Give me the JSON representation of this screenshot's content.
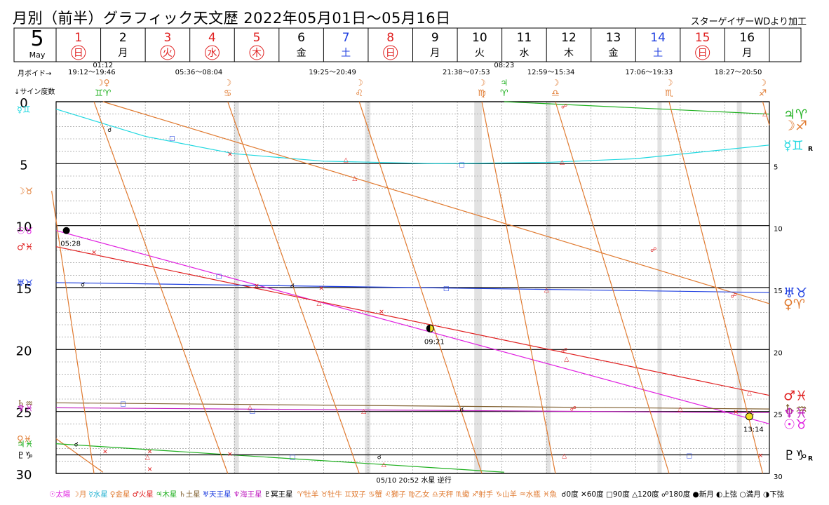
{
  "title": "月別（前半）グラフィック天文歴  2022年05月01日～05月16日",
  "credit": "スターゲイザーWDより加工",
  "month": {
    "number": "5",
    "en": "May"
  },
  "days": [
    {
      "num": "1",
      "wd": "日",
      "kind": "holiday"
    },
    {
      "num": "2",
      "wd": "月",
      "kind": "normal"
    },
    {
      "num": "3",
      "wd": "火",
      "kind": "holiday"
    },
    {
      "num": "4",
      "wd": "水",
      "kind": "holiday"
    },
    {
      "num": "5",
      "wd": "木",
      "kind": "holiday"
    },
    {
      "num": "6",
      "wd": "金",
      "kind": "normal"
    },
    {
      "num": "7",
      "wd": "土",
      "kind": "sat"
    },
    {
      "num": "8",
      "wd": "日",
      "kind": "holiday"
    },
    {
      "num": "9",
      "wd": "月",
      "kind": "normal"
    },
    {
      "num": "10",
      "wd": "火",
      "kind": "normal"
    },
    {
      "num": "11",
      "wd": "水",
      "kind": "normal"
    },
    {
      "num": "12",
      "wd": "木",
      "kind": "normal"
    },
    {
      "num": "13",
      "wd": "金",
      "kind": "normal"
    },
    {
      "num": "14",
      "wd": "土",
      "kind": "sat"
    },
    {
      "num": "15",
      "wd": "日",
      "kind": "holiday"
    },
    {
      "num": "16",
      "wd": "月",
      "kind": "normal"
    }
  ],
  "labels": {
    "void": "月ボイド→",
    "degree": "↓サイン度数",
    "retro_note": "05/10 20:52 水星 逆行",
    "retro_mark": "R"
  },
  "void_periods": [
    {
      "day": 1.8,
      "text": "19:12～19:46"
    },
    {
      "day": 4.2,
      "text": "05:36～08:04"
    },
    {
      "day": 7.2,
      "text": "19:25～20:49"
    },
    {
      "day": 10.2,
      "text": "21:38～07:53"
    },
    {
      "day": 12.1,
      "text": "12:59～15:34"
    },
    {
      "day": 14.3,
      "text": "17:06～19:33"
    },
    {
      "day": 16.3,
      "text": "18:27～20:50"
    }
  ],
  "ingress": [
    {
      "day": 2.05,
      "glyph": "☽♀",
      "sign": "♊♈",
      "time": "01:12",
      "cls": [
        "moon",
        "ven"
      ]
    },
    {
      "day": 4.85,
      "glyph": "☽",
      "sign": "♋",
      "time": "",
      "cls": [
        "moon"
      ]
    },
    {
      "day": 7.8,
      "glyph": "☽",
      "sign": "♌",
      "time": "",
      "cls": [
        "moon"
      ]
    },
    {
      "day": 10.55,
      "glyph": "☽",
      "sign": "♍",
      "time": "",
      "cls": [
        "moon"
      ]
    },
    {
      "day": 11.05,
      "glyph": "♃",
      "sign": "♈",
      "time": "08:23",
      "cls": [
        "jup"
      ]
    },
    {
      "day": 12.2,
      "glyph": "☽",
      "sign": "♎",
      "time": "",
      "cls": [
        "moon"
      ]
    },
    {
      "day": 14.75,
      "glyph": "☽",
      "sign": "♏",
      "time": "",
      "cls": [
        "moon"
      ]
    },
    {
      "day": 16.85,
      "glyph": "☽",
      "sign": "♐",
      "time": "",
      "cls": [
        "moon"
      ]
    }
  ],
  "chart_data": {
    "type": "line",
    "x_label": "日",
    "y_label": "↓サイン度数",
    "x_range": [
      1,
      17
    ],
    "y_range": [
      0,
      30
    ],
    "y_ticks_left": [
      0,
      5,
      10,
      15,
      20,
      25,
      30
    ],
    "y_ticks_right": [
      5,
      10,
      15,
      20,
      25,
      30
    ],
    "void_bands": [
      [
        4.99,
        5.1
      ],
      [
        7.93,
        8.05
      ],
      [
        10.38,
        10.55
      ],
      [
        11.99,
        12.09
      ],
      [
        14.49,
        14.58
      ],
      [
        16.27,
        16.38
      ]
    ],
    "series": [
      {
        "key": "sun",
        "color": "#e020e0",
        "points": [
          [
            1,
            10.4
          ],
          [
            17,
            26.0
          ]
        ],
        "start_label": "☉♉",
        "end_label": "☉♉"
      },
      {
        "key": "mercury",
        "color": "#20d8e0",
        "curve": [
          [
            1,
            0.6
          ],
          [
            3,
            2.8
          ],
          [
            5,
            4.2
          ],
          [
            7,
            4.8
          ],
          [
            9.5,
            5.0
          ],
          [
            12,
            4.9
          ],
          [
            14,
            4.6
          ],
          [
            17,
            3.5
          ]
        ],
        "start_label": "☿♊",
        "end_label": "☿♊",
        "end_mark": "R"
      },
      {
        "key": "venus",
        "color": "#e07a30",
        "points": [
          [
            2.05,
            0.0
          ],
          [
            17,
            16.3
          ]
        ],
        "end_label": "♀♈"
      },
      {
        "key": "venus_prev",
        "color": "#e07a30",
        "points": [
          [
            1,
            27.2
          ],
          [
            2.05,
            29.9
          ]
        ],
        "start_label": "♀♓"
      },
      {
        "key": "mars",
        "color": "#e02020",
        "points": [
          [
            1,
            11.7
          ],
          [
            17,
            23.7
          ]
        ],
        "start_label": "♂♓",
        "end_label": "♂♓"
      },
      {
        "key": "jupiter",
        "color": "#20b020",
        "points": [
          [
            11.05,
            0.0
          ],
          [
            17,
            1.0
          ]
        ],
        "end_label": "♃♈"
      },
      {
        "key": "jupiter_prev",
        "color": "#20b020",
        "points": [
          [
            1,
            27.6
          ],
          [
            11.05,
            29.9
          ]
        ],
        "start_label": "♃♓"
      },
      {
        "key": "saturn",
        "color": "#806030",
        "points": [
          [
            1,
            24.3
          ],
          [
            17,
            24.8
          ]
        ],
        "start_label": "♄♒",
        "end_label": "♄♒"
      },
      {
        "key": "uranus",
        "color": "#2040e0",
        "points": [
          [
            1,
            14.6
          ],
          [
            17,
            15.4
          ]
        ],
        "start_label": "♅♉",
        "end_label": "♅♉"
      },
      {
        "key": "neptune",
        "color": "#c020c0",
        "points": [
          [
            1,
            24.7
          ],
          [
            17,
            25.1
          ]
        ],
        "start_label": "♆♓",
        "end_label": "♆♓"
      },
      {
        "key": "pluto",
        "color": "#000000",
        "points": [
          [
            1,
            28.5
          ],
          [
            17,
            28.5
          ]
        ],
        "start_label": "♇♑",
        "end_label": "♇♑",
        "end_mark": "R"
      },
      {
        "key": "moon_prev",
        "color": "#e07a30",
        "points": [
          [
            0.9,
            7.2
          ],
          [
            1.85,
            30.0
          ]
        ],
        "start_label": "☽♉"
      },
      {
        "key": "moon",
        "color": "#e07a30",
        "segments": [
          [
            [
              1.85,
              0
            ],
            [
              4.85,
              30
            ]
          ],
          [
            [
              4.85,
              0
            ],
            [
              7.8,
              30
            ]
          ],
          [
            [
              7.8,
              0
            ],
            [
              10.55,
              30
            ]
          ],
          [
            [
              10.55,
              0
            ],
            [
              12.2,
              30
            ]
          ],
          [
            [
              12.2,
              0
            ],
            [
              14.75,
              30
            ]
          ],
          [
            [
              14.75,
              0
            ],
            [
              16.85,
              30
            ]
          ],
          [
            [
              16.85,
              0
            ],
            [
              17,
              1.9
            ]
          ]
        ],
        "end_label": "☽♐"
      }
    ],
    "lunar_phases": [
      {
        "day": 1.23,
        "deg": 10.4,
        "type": "new",
        "time": "05:28"
      },
      {
        "day": 9.39,
        "deg": 18.3,
        "type": "first",
        "time": "09:21"
      },
      {
        "day": 16.55,
        "deg": 25.4,
        "type": "full",
        "time": "13:14"
      }
    ],
    "aspects": [
      {
        "day": 2.2,
        "deg": 2.2,
        "sym": "☌"
      },
      {
        "day": 3.6,
        "deg": 2.9,
        "sym": "□"
      },
      {
        "day": 4.9,
        "deg": 4.2,
        "sym": "✕"
      },
      {
        "day": 7.5,
        "deg": 4.6,
        "sym": "△"
      },
      {
        "day": 7.7,
        "deg": 6.1,
        "sym": "△"
      },
      {
        "day": 10.1,
        "deg": 5.0,
        "sym": "□"
      },
      {
        "day": 12.35,
        "deg": 4.8,
        "sym": "△"
      },
      {
        "day": 12.4,
        "deg": 0.3,
        "sym": "☍"
      },
      {
        "day": 14.4,
        "deg": 11.9,
        "sym": "☍"
      },
      {
        "day": 1.85,
        "deg": 12.1,
        "sym": "✕"
      },
      {
        "day": 1.6,
        "deg": 14.7,
        "sym": "☌"
      },
      {
        "day": 4.65,
        "deg": 14.0,
        "sym": "□"
      },
      {
        "day": 5.5,
        "deg": 14.8,
        "sym": "✕"
      },
      {
        "day": 6.3,
        "deg": 14.8,
        "sym": "☌"
      },
      {
        "day": 6.95,
        "deg": 15.0,
        "sym": "✕"
      },
      {
        "day": 6.9,
        "deg": 16.2,
        "sym": "△"
      },
      {
        "day": 8.3,
        "deg": 16.9,
        "sym": "✕"
      },
      {
        "day": 9.75,
        "deg": 15.0,
        "sym": "□"
      },
      {
        "day": 12.0,
        "deg": 15.1,
        "sym": "△"
      },
      {
        "day": 16.2,
        "deg": 15.6,
        "sym": "☍"
      },
      {
        "day": 12.4,
        "deg": 20.0,
        "sym": "☍"
      },
      {
        "day": 12.45,
        "deg": 20.7,
        "sym": "△"
      },
      {
        "day": 2.5,
        "deg": 24.3,
        "sym": "□"
      },
      {
        "day": 5.35,
        "deg": 24.6,
        "sym": "△"
      },
      {
        "day": 5.4,
        "deg": 24.9,
        "sym": "□"
      },
      {
        "day": 7.9,
        "deg": 24.9,
        "sym": "△"
      },
      {
        "day": 10.1,
        "deg": 24.8,
        "sym": "☌"
      },
      {
        "day": 12.6,
        "deg": 24.7,
        "sym": "☍"
      },
      {
        "day": 15.0,
        "deg": 24.7,
        "sym": "△"
      },
      {
        "day": 16.25,
        "deg": 25.0,
        "sym": "✕"
      },
      {
        "day": 16.55,
        "deg": 23.4,
        "sym": "△"
      },
      {
        "day": 16.6,
        "deg": 25.0,
        "sym": "△"
      },
      {
        "day": 1.45,
        "deg": 27.6,
        "sym": "☌"
      },
      {
        "day": 2.1,
        "deg": 28.2,
        "sym": "✕"
      },
      {
        "day": 3.1,
        "deg": 28.2,
        "sym": "✕"
      },
      {
        "day": 4.9,
        "deg": 28.4,
        "sym": "✕"
      },
      {
        "day": 6.3,
        "deg": 28.6,
        "sym": "□"
      },
      {
        "day": 8.25,
        "deg": 28.6,
        "sym": "☌"
      },
      {
        "day": 8.35,
        "deg": 29.2,
        "sym": "△"
      },
      {
        "day": 3.05,
        "deg": 28.6,
        "sym": "△"
      },
      {
        "day": 3.1,
        "deg": 29.6,
        "sym": "✕"
      },
      {
        "day": 12.4,
        "deg": 28.5,
        "sym": "△"
      },
      {
        "day": 15.2,
        "deg": 28.5,
        "sym": "□"
      },
      {
        "day": 16.8,
        "deg": 28.5,
        "sym": "✕"
      },
      {
        "day": 16.9,
        "deg": 0.9,
        "sym": "△"
      }
    ]
  },
  "legend": [
    {
      "text": "☉太陽",
      "cls": "sun"
    },
    {
      "text": "☽月",
      "cls": "moon"
    },
    {
      "text": "☿水星",
      "cls": "merc"
    },
    {
      "text": "♀金星",
      "cls": "ven"
    },
    {
      "text": "♂火星",
      "cls": "mars"
    },
    {
      "text": "♃木星",
      "cls": "jup"
    },
    {
      "text": "♄土星",
      "cls": "sat"
    },
    {
      "text": "♅天王星",
      "cls": "ura"
    },
    {
      "text": "♆海王星",
      "cls": "nep"
    },
    {
      "text": "♇冥王星",
      "cls": "plu"
    },
    {
      "text": "   ♈牡羊 ♉牡牛 ♊双子 ♋蟹 ♌獅子 ♍乙女 ♎天秤 ♏蠍 ♐射手 ♑山羊 ♒水瓶 ♓魚",
      "cls": "moon"
    },
    {
      "text": "   ☌0度 ✕60度 □90度 △120度 ☍180度 ●新月 ◐上弦 ○満月 ◑下弦",
      "cls": "plu"
    }
  ]
}
